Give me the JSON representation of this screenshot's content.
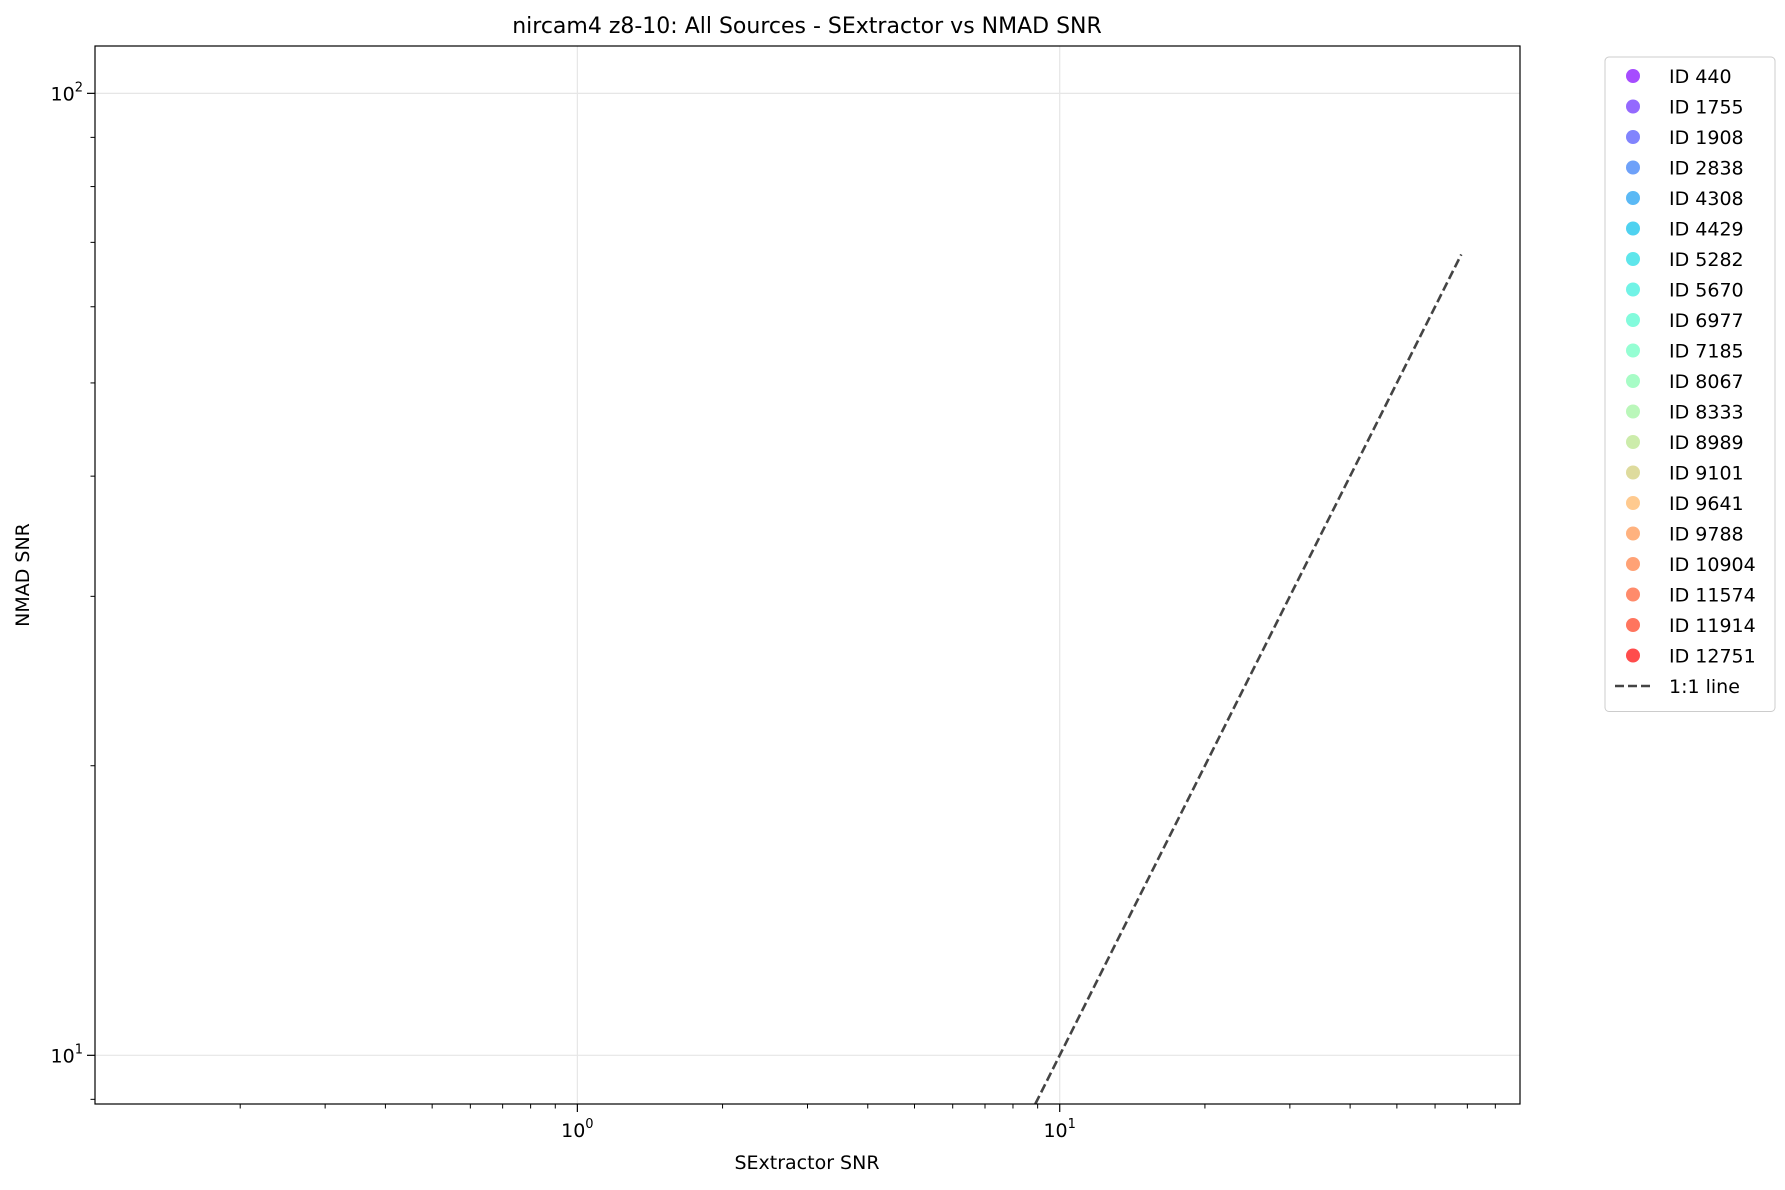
{
  "chart_data": {
    "type": "scatter",
    "title": "nircam4 z8-10: All Sources - SExtractor vs NMAD SNR",
    "xlabel": "SExtractor SNR",
    "ylabel": "NMAD SNR",
    "xscale": "log",
    "yscale": "log",
    "xlim": [
      0.1,
      90
    ],
    "ylim": [
      8.9,
      112
    ],
    "grid": true,
    "legend_position": "outside-right",
    "x_major_ticks": [
      {
        "value": 1,
        "base": "10",
        "exp": "0"
      },
      {
        "value": 10,
        "base": "10",
        "exp": "1"
      }
    ],
    "y_major_ticks": [
      {
        "value": 10,
        "base": "10",
        "exp": "1"
      },
      {
        "value": 100,
        "base": "10",
        "exp": "2"
      }
    ],
    "series": [
      {
        "name": "ID 440",
        "color": "#8000ff",
        "points": []
      },
      {
        "name": "ID 1755",
        "color": "#6629fe",
        "points": []
      },
      {
        "name": "ID 1908",
        "color": "#4c50fc",
        "points": []
      },
      {
        "name": "ID 2838",
        "color": "#3079f7",
        "points": []
      },
      {
        "name": "ID 4308",
        "color": "#169bf1",
        "points": []
      },
      {
        "name": "ID 4429",
        "color": "#04bfe9",
        "points": []
      },
      {
        "name": "ID 5282",
        "color": "#1adbe2",
        "points": []
      },
      {
        "name": "ID 5670",
        "color": "#34eedb",
        "points": []
      },
      {
        "name": "ID 6977",
        "color": "#4efacd",
        "points": []
      },
      {
        "name": "ID 7185",
        "color": "#68fec1",
        "points": []
      },
      {
        "name": "ID 8067",
        "color": "#82fbae",
        "points": []
      },
      {
        "name": "ID 8333",
        "color": "#9cf49c",
        "points": []
      },
      {
        "name": "ID 8989",
        "color": "#b6e487",
        "points": []
      },
      {
        "name": "ID 9101",
        "color": "#d0cc73",
        "points": []
      },
      {
        "name": "ID 9641",
        "color": "#ffb35f",
        "points": []
      },
      {
        "name": "ID 9788",
        "color": "#ff9148",
        "points": []
      },
      {
        "name": "ID 10904",
        "color": "#ff7a3c",
        "points": []
      },
      {
        "name": "ID 11574",
        "color": "#ff5a2c",
        "points": []
      },
      {
        "name": "ID 11914",
        "color": "#ff3a1a",
        "points": []
      },
      {
        "name": "ID 12751",
        "color": "#ff0000",
        "points": []
      }
    ],
    "reference_line": {
      "name": "1:1 line",
      "x": [
        8.9,
        68
      ],
      "y": [
        8.9,
        68
      ],
      "style": "dashed",
      "color": "#444444"
    }
  }
}
